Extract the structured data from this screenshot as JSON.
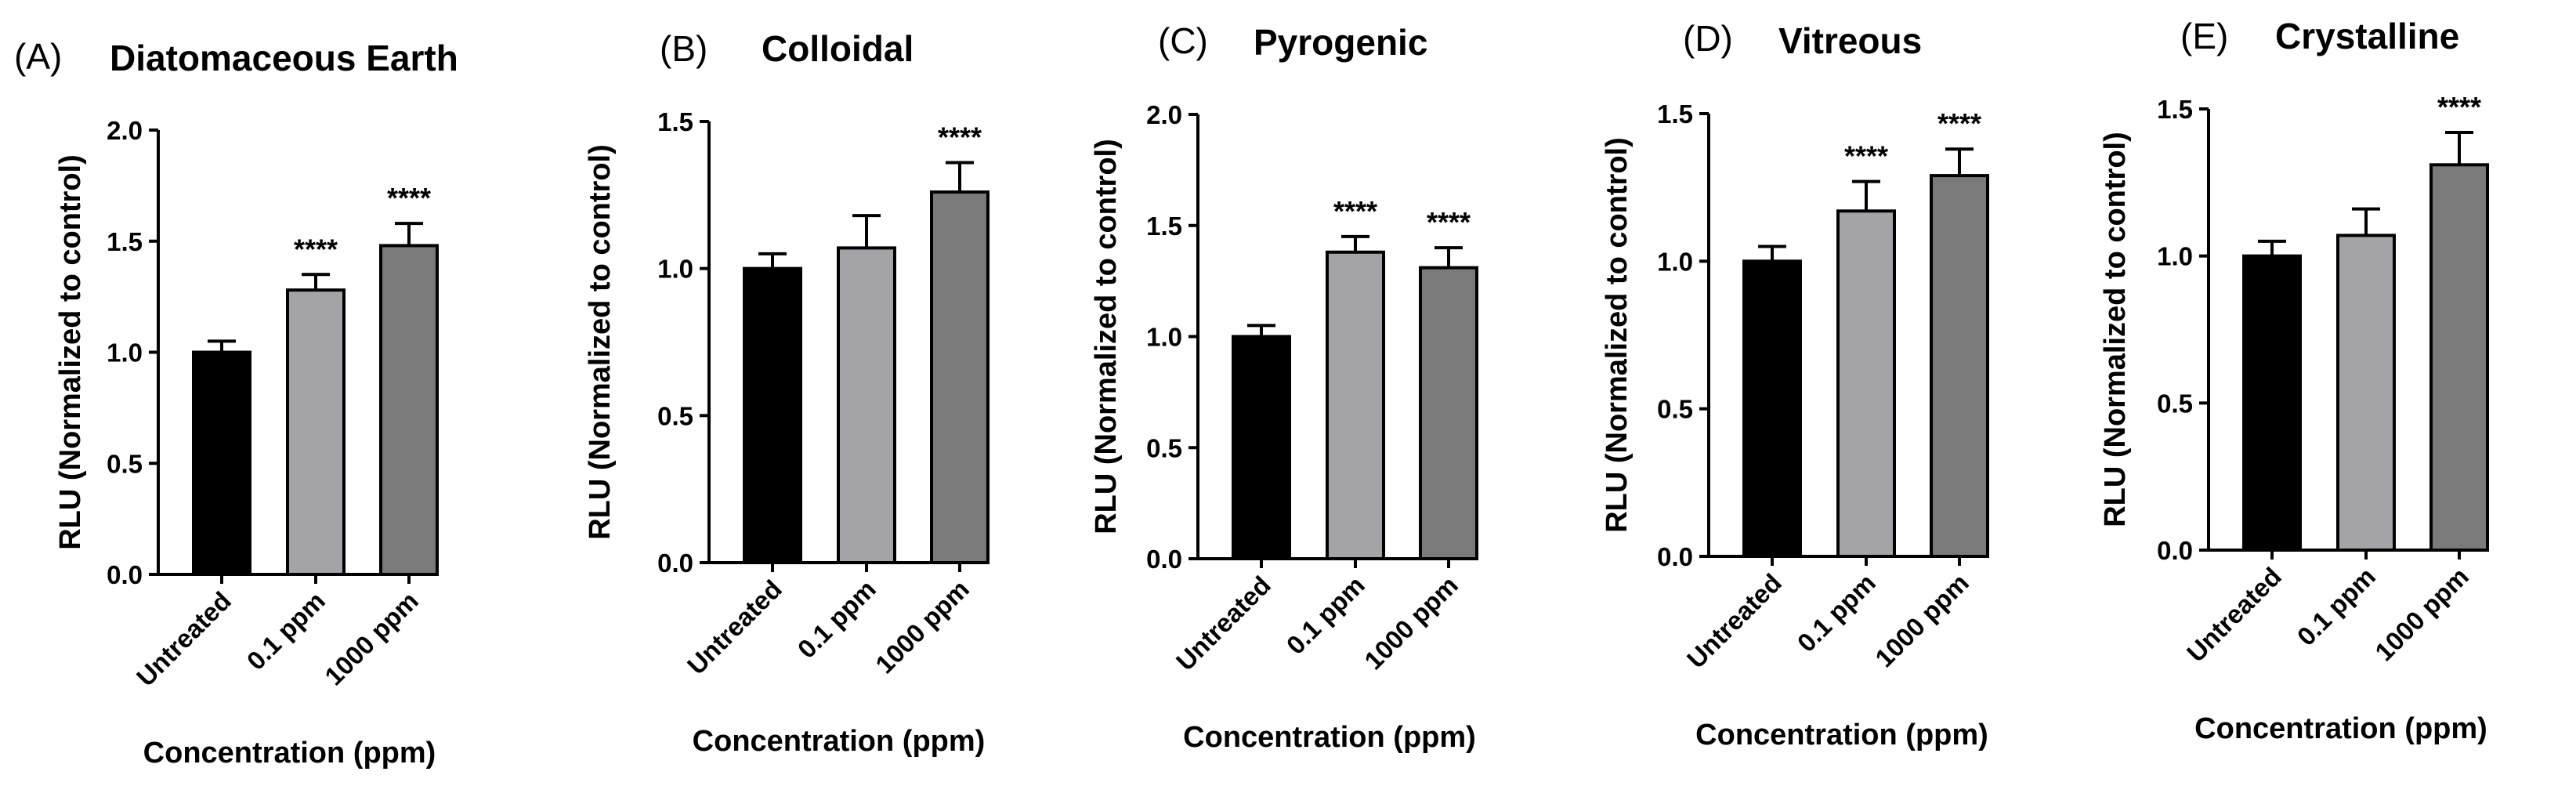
{
  "figure": {
    "colors": {
      "Untreated": "#000000",
      "0.1 ppm": "#a3a3a8",
      "1000 ppm": "#7a7a7a"
    }
  },
  "chart_data": [
    {
      "type": "bar",
      "panel_label": "(A)",
      "title": "Diatomaceous Earth",
      "xlabel": "Concentration (ppm)",
      "ylabel": "RLU (Normalized to control)",
      "ylim": [
        0,
        2.0
      ],
      "yticks": [
        "0.0",
        "0.5",
        "1.0",
        "1.5",
        "2.0"
      ],
      "categories": [
        "Untreated",
        "0.1 ppm",
        "1000 ppm"
      ],
      "values": [
        1.0,
        1.28,
        1.48
      ],
      "errors": [
        0.05,
        0.07,
        0.1
      ],
      "significance": [
        "",
        "****",
        "****"
      ]
    },
    {
      "type": "bar",
      "panel_label": "(B)",
      "title": "Colloidal",
      "xlabel": "Concentration (ppm)",
      "ylabel": "RLU (Normalized to control)",
      "ylim": [
        0,
        1.5
      ],
      "yticks": [
        "0.0",
        "0.5",
        "1.0",
        "1.5"
      ],
      "categories": [
        "Untreated",
        "0.1 ppm",
        "1000 ppm"
      ],
      "values": [
        1.0,
        1.07,
        1.26
      ],
      "errors": [
        0.05,
        0.11,
        0.1
      ],
      "significance": [
        "",
        "",
        "****"
      ]
    },
    {
      "type": "bar",
      "panel_label": "(C)",
      "title": "Pyrogenic",
      "xlabel": "Concentration (ppm)",
      "ylabel": "RLU (Normalized to control)",
      "ylim": [
        0,
        2.0
      ],
      "yticks": [
        "0.0",
        "0.5",
        "1.0",
        "1.5",
        "2.0"
      ],
      "categories": [
        "Untreated",
        "0.1 ppm",
        "1000 ppm"
      ],
      "values": [
        1.0,
        1.38,
        1.31
      ],
      "errors": [
        0.05,
        0.07,
        0.09
      ],
      "significance": [
        "",
        "****",
        "****"
      ]
    },
    {
      "type": "bar",
      "panel_label": "(D)",
      "title": "Vitreous",
      "xlabel": "Concentration (ppm)",
      "ylabel": "RLU (Normalized to control)",
      "ylim": [
        0,
        1.5
      ],
      "yticks": [
        "0.0",
        "0.5",
        "1.0",
        "1.5"
      ],
      "categories": [
        "Untreated",
        "0.1 ppm",
        "1000 ppm"
      ],
      "values": [
        1.0,
        1.17,
        1.29
      ],
      "errors": [
        0.05,
        0.1,
        0.09
      ],
      "significance": [
        "",
        "****",
        "****"
      ]
    },
    {
      "type": "bar",
      "panel_label": "(E)",
      "title": "Crystalline",
      "xlabel": "Concentration (ppm)",
      "ylabel": "RLU (Normalized to control)",
      "ylim": [
        0,
        1.5
      ],
      "yticks": [
        "0.0",
        "0.5",
        "1.0",
        "1.5"
      ],
      "categories": [
        "Untreated",
        "0.1 ppm",
        "1000 ppm"
      ],
      "values": [
        1.0,
        1.07,
        1.31
      ],
      "errors": [
        0.05,
        0.09,
        0.11
      ],
      "significance": [
        "",
        "",
        "****"
      ]
    }
  ]
}
